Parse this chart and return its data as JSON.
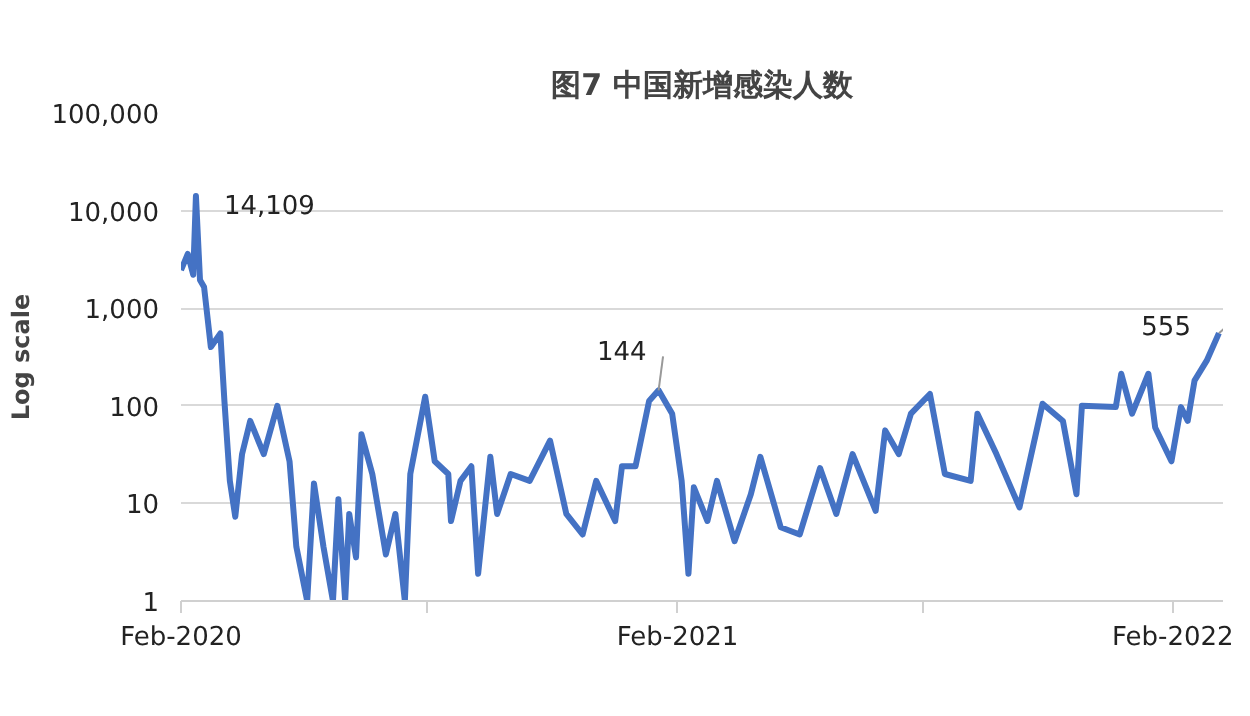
{
  "chart_data": {
    "type": "line",
    "title": "图7 中国新增感染人数",
    "ylabel": "Log scale",
    "x": [
      "2020-02-01",
      "2020-02-06",
      "2020-02-10",
      "2020-02-12",
      "2020-02-15",
      "2020-02-18",
      "2020-02-23",
      "2020-03-01",
      "2020-03-04",
      "2020-03-08",
      "2020-03-12",
      "2020-03-17",
      "2020-03-23",
      "2020-04-02",
      "2020-04-12",
      "2020-04-21",
      "2020-04-26",
      "2020-05-04",
      "2020-05-09",
      "2020-05-16",
      "2020-05-23",
      "2020-05-27",
      "2020-06-01",
      "2020-06-04",
      "2020-06-09",
      "2020-06-13",
      "2020-06-21",
      "2020-07-01",
      "2020-07-08",
      "2020-07-15",
      "2020-07-19",
      "2020-07-30",
      "2020-08-06",
      "2020-08-16",
      "2020-08-18",
      "2020-08-25",
      "2020-09-02",
      "2020-09-07",
      "2020-09-16",
      "2020-09-21",
      "2020-10-01",
      "2020-10-15",
      "2020-10-30",
      "2020-11-11",
      "2020-11-23",
      "2020-12-03",
      "2020-12-17",
      "2020-12-22",
      "2021-01-01",
      "2021-01-11",
      "2021-01-18",
      "2021-01-28",
      "2021-02-04",
      "2021-02-09",
      "2021-02-13",
      "2021-02-23",
      "2021-03-02",
      "2021-03-15",
      "2021-03-27",
      "2021-04-03",
      "2021-04-18",
      "2021-05-02",
      "2021-05-17",
      "2021-05-29",
      "2021-06-10",
      "2021-06-27",
      "2021-07-04",
      "2021-07-14",
      "2021-07-23",
      "2021-08-06",
      "2021-08-17",
      "2021-09-05",
      "2021-09-10",
      "2021-09-24",
      "2021-10-11",
      "2021-10-28",
      "2021-11-12",
      "2021-11-22",
      "2021-11-26",
      "2021-12-21",
      "2021-12-25",
      "2022-01-02",
      "2022-01-14",
      "2022-01-19",
      "2022-01-31",
      "2022-02-07",
      "2022-02-12",
      "2022-02-17",
      "2022-02-26",
      "2022-03-07"
    ],
    "series": [
      {
        "color": "#4472c4",
        "values": [
          2450,
          3600,
          2200,
          14109,
          1950,
          1650,
          400,
          550,
          112,
          17,
          7.3,
          32,
          70,
          32,
          100,
          27,
          3.6,
          1,
          16,
          3.6,
          1,
          11,
          1,
          7.8,
          2.8,
          51,
          20,
          3,
          7.8,
          1,
          20,
          124,
          27,
          20,
          6.6,
          17,
          24,
          1.9,
          30,
          7.8,
          20,
          17,
          44,
          7.8,
          4.8,
          17,
          6.6,
          24,
          24,
          112,
          144,
          83,
          17,
          1.9,
          14.6,
          6.6,
          17,
          4.1,
          12.4,
          30,
          5.7,
          4.8,
          23,
          7.8,
          32,
          8.4,
          56,
          32,
          83,
          132,
          20,
          17,
          83,
          32,
          9.1,
          105,
          70,
          12.4,
          100,
          97,
          213,
          83,
          213,
          60,
          27,
          97,
          70,
          181,
          290,
          555
        ]
      }
    ],
    "xlim": [
      "2020-02-01",
      "2022-03-10"
    ],
    "xticks": [
      {
        "value": "2020-02-01",
        "label": "Feb-2020"
      },
      {
        "value": "2020-08-01",
        "label": null
      },
      {
        "value": "2021-02-01",
        "label": "Feb-2021"
      },
      {
        "value": "2021-08-01",
        "label": null
      },
      {
        "value": "2022-02-01",
        "label": "Feb-2022"
      }
    ],
    "log": "y",
    "ylim": [
      1,
      100000
    ],
    "yticks": [
      1,
      10,
      100,
      {
        "value": 1000,
        "label": "1,000"
      },
      {
        "value": 10000,
        "label": "10,000"
      },
      {
        "value": 100000,
        "label": "100,000"
      }
    ],
    "grid": "y",
    "marker": "none",
    "line_style": "solid",
    "annotations": [
      {
        "text": "14,109",
        "x": "2020-02-12",
        "y": 14109
      },
      {
        "text": "144",
        "x": "2021-01-18",
        "y": 144
      },
      {
        "text": "555",
        "x": "2022-03-07",
        "y": 555
      }
    ]
  }
}
